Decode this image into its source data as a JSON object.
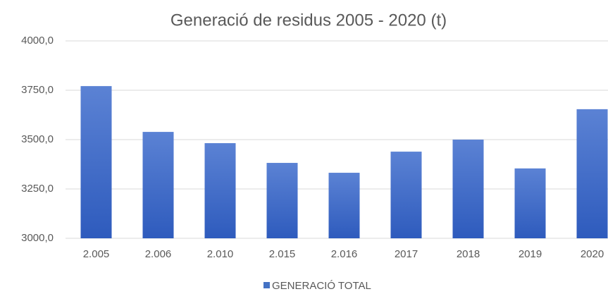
{
  "chart_data": {
    "type": "bar",
    "title": "Generació de residus 2005 - 2020 (t)",
    "categories": [
      "2.005",
      "2.006",
      "2.010",
      "2.015",
      "2.016",
      "2017",
      "2018",
      "2019",
      "2020"
    ],
    "series": [
      {
        "name": "GENERACIÓ TOTAL",
        "color": "#4472c4",
        "values": [
          3771,
          3539,
          3482,
          3382,
          3332,
          3439,
          3500,
          3354,
          3654
        ]
      }
    ],
    "ylim": [
      3000,
      4000
    ],
    "yticks": [
      {
        "value": 3000,
        "label": "3000,0"
      },
      {
        "value": 3250,
        "label": "3250,0"
      },
      {
        "value": 3500,
        "label": "3500,0"
      },
      {
        "value": 3750,
        "label": "3750,0"
      },
      {
        "value": 4000,
        "label": "4000,0"
      }
    ],
    "grid": true,
    "legend": "bottom"
  }
}
